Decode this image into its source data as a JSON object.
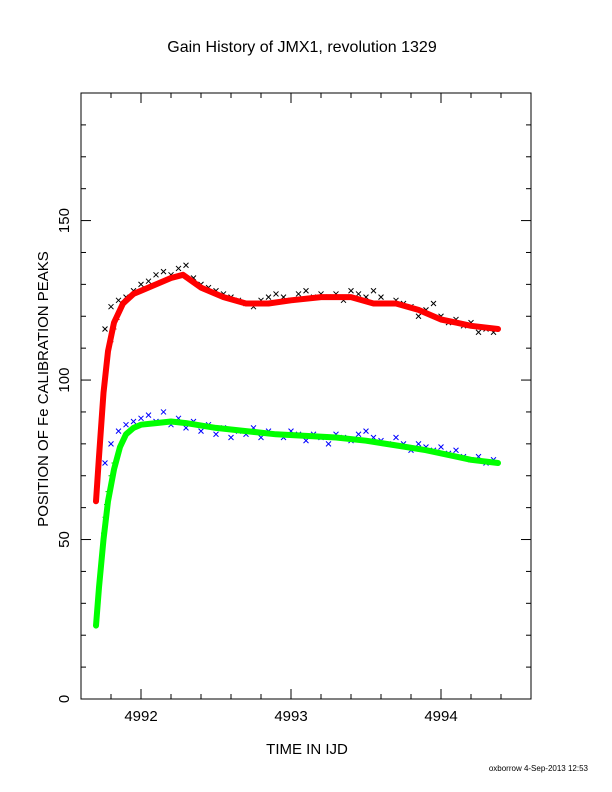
{
  "chart_data": {
    "type": "scatter",
    "title": "Gain History of JMX1, revolution 1329",
    "xlabel": "TIME IN IJD",
    "ylabel": "POSITION OF Fe CALIBRATION PEAKS",
    "xlim": [
      4991.6,
      4994.6
    ],
    "ylim": [
      0,
      190
    ],
    "x_ticks": [
      4992,
      4993,
      4994
    ],
    "x_tick_labels": [
      "4992",
      "4993",
      "4994"
    ],
    "y_ticks": [
      0,
      50,
      100,
      150
    ],
    "y_tick_labels": [
      "0",
      "50",
      "100",
      "150"
    ],
    "grid": false,
    "legend": "none",
    "series": [
      {
        "role": "upper-peak-points",
        "marker": "x",
        "color": "#000000",
        "x": [
          4991.76,
          4991.8,
          4991.85,
          4991.9,
          4991.95,
          4992.0,
          4992.05,
          4992.1,
          4992.15,
          4992.2,
          4992.25,
          4992.3,
          4992.35,
          4992.4,
          4992.45,
          4992.5,
          4992.55,
          4992.6,
          4992.65,
          4992.7,
          4992.75,
          4992.8,
          4992.85,
          4992.9,
          4992.95,
          4993.0,
          4993.05,
          4993.1,
          4993.15,
          4993.2,
          4993.25,
          4993.3,
          4993.35,
          4993.4,
          4993.45,
          4993.5,
          4993.55,
          4993.6,
          4993.65,
          4993.7,
          4993.75,
          4993.8,
          4993.85,
          4993.9,
          4993.95,
          4994.0,
          4994.05,
          4994.1,
          4994.15,
          4994.2,
          4994.25,
          4994.3,
          4994.35
        ],
        "y": [
          116,
          123,
          125,
          126,
          128,
          130,
          131,
          133,
          134,
          133,
          135,
          136,
          132,
          130,
          129,
          128,
          127,
          126,
          125,
          124,
          123,
          125,
          126,
          127,
          126,
          125,
          127,
          128,
          126,
          127,
          126,
          127,
          125,
          128,
          127,
          126,
          128,
          126,
          124,
          125,
          124,
          123,
          120,
          122,
          124,
          120,
          118,
          119,
          117,
          118,
          115,
          116,
          115
        ]
      },
      {
        "role": "upper-peak-rise",
        "marker": "+",
        "color": "#cc0000",
        "x": [
          4991.7,
          4991.71,
          4991.72,
          4991.73,
          4991.74,
          4991.75,
          4991.76,
          4991.77,
          4991.78,
          4991.8,
          4991.82,
          4991.84
        ],
        "y": [
          62,
          68,
          75,
          82,
          89,
          95,
          100,
          104,
          108,
          112,
          116,
          119
        ]
      },
      {
        "role": "upper-peak-fit",
        "marker": "line",
        "color": "#ff0000",
        "x": [
          4991.7,
          4991.72,
          4991.75,
          4991.78,
          4991.82,
          4991.88,
          4991.95,
          4992.0,
          4992.1,
          4992.2,
          4992.28,
          4992.4,
          4992.55,
          4992.7,
          4992.85,
          4993.0,
          4993.2,
          4993.4,
          4993.55,
          4993.7,
          4993.85,
          4994.0,
          4994.1,
          4994.2,
          4994.38
        ],
        "y": [
          62,
          76,
          96,
          109,
          118,
          124,
          127,
          128,
          130,
          132,
          133,
          129,
          126,
          124,
          124,
          125,
          126,
          126,
          124,
          124,
          122,
          119,
          118,
          117,
          116
        ]
      },
      {
        "role": "lower-peak-points",
        "marker": "x",
        "color": "#0000ff",
        "x": [
          4991.76,
          4991.8,
          4991.85,
          4991.9,
          4991.95,
          4992.0,
          4992.05,
          4992.1,
          4992.15,
          4992.2,
          4992.25,
          4992.3,
          4992.35,
          4992.4,
          4992.45,
          4992.5,
          4992.55,
          4992.6,
          4992.65,
          4992.7,
          4992.75,
          4992.8,
          4992.85,
          4992.9,
          4992.95,
          4993.0,
          4993.05,
          4993.1,
          4993.15,
          4993.2,
          4993.25,
          4993.3,
          4993.35,
          4993.4,
          4993.45,
          4993.5,
          4993.55,
          4993.6,
          4993.65,
          4993.7,
          4993.75,
          4993.8,
          4993.85,
          4993.9,
          4993.95,
          4994.0,
          4994.05,
          4994.1,
          4994.15,
          4994.2,
          4994.25,
          4994.3,
          4994.35
        ],
        "y": [
          74,
          80,
          84,
          86,
          87,
          88,
          89,
          87,
          90,
          86,
          88,
          85,
          87,
          84,
          86,
          83,
          85,
          82,
          84,
          83,
          85,
          82,
          84,
          83,
          82,
          84,
          83,
          81,
          83,
          82,
          80,
          83,
          82,
          81,
          83,
          84,
          82,
          81,
          80,
          82,
          80,
          78,
          80,
          79,
          78,
          79,
          77,
          78,
          76,
          75,
          76,
          74,
          75
        ]
      },
      {
        "role": "lower-peak-rise",
        "marker": "+",
        "color": "#00cc00",
        "x": [
          4991.7,
          4991.71,
          4991.72,
          4991.73,
          4991.74,
          4991.75,
          4991.76,
          4991.77,
          4991.78,
          4991.8,
          4991.82
        ],
        "y": [
          23,
          28,
          34,
          40,
          46,
          52,
          57,
          61,
          65,
          70,
          74
        ]
      },
      {
        "role": "lower-peak-fit",
        "marker": "line",
        "color": "#00ff00",
        "x": [
          4991.7,
          4991.72,
          4991.75,
          4991.78,
          4991.82,
          4991.86,
          4991.9,
          4991.95,
          4992.0,
          4992.1,
          4992.2,
          4992.3,
          4992.5,
          4992.7,
          4992.9,
          4993.1,
          4993.3,
          4993.5,
          4993.7,
          4993.9,
          4994.1,
          4994.2,
          4994.38
        ],
        "y": [
          23,
          35,
          50,
          62,
          72,
          79,
          83,
          85,
          86,
          86.5,
          87,
          86.5,
          85,
          84,
          83,
          82.5,
          82,
          81,
          79.5,
          78,
          76,
          75,
          74
        ]
      }
    ]
  },
  "footer": {
    "stamp": "oxborrow  4-Sep-2013 12:53"
  }
}
